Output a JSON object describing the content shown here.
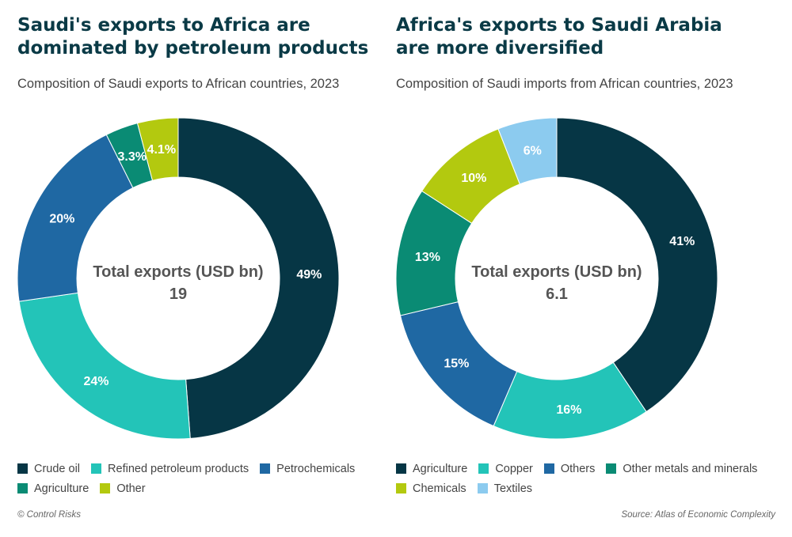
{
  "footer": {
    "credit": "© Control Risks",
    "source": "Source: Atlas of Economic Complexity"
  },
  "chart_data": [
    {
      "type": "pie",
      "title_lines": [
        "Saudi's exports to Africa are",
        "dominated by petroleum products"
      ],
      "subtitle": "Composition of Saudi exports to African countries, 2023",
      "center_label": "Total exports (USD bn)",
      "center_value": "19",
      "slices": [
        {
          "name": "Crude oil",
          "value": 49,
          "label": "49%",
          "color": "#063645"
        },
        {
          "name": "Refined petroleum products",
          "value": 24,
          "label": "24%",
          "color": "#23c4b8"
        },
        {
          "name": "Petrochemicals",
          "value": 20,
          "label": "20%",
          "color": "#1f68a3"
        },
        {
          "name": "Agriculture",
          "value": 3.3,
          "label": "3.3%",
          "color": "#0a8b74"
        },
        {
          "name": "Other",
          "value": 4.1,
          "label": "4.1%",
          "color": "#b3c90f"
        }
      ],
      "legend": [
        "Crude oil",
        "Refined petroleum products",
        "Petrochemicals",
        "Agriculture",
        "Other"
      ]
    },
    {
      "type": "pie",
      "title_lines": [
        "Africa's exports to Saudi Arabia",
        "are more diversified"
      ],
      "subtitle": "Composition of Saudi imports from African countries, 2023",
      "center_label": "Total exports (USD bn)",
      "center_value": "6.1",
      "slices": [
        {
          "name": "Agriculture",
          "value": 41,
          "label": "41%",
          "color": "#063645"
        },
        {
          "name": "Copper",
          "value": 16,
          "label": "16%",
          "color": "#23c4b8"
        },
        {
          "name": "Others",
          "value": 15,
          "label": "15%",
          "color": "#1f68a3"
        },
        {
          "name": "Other metals and minerals",
          "value": 13,
          "label": "13%",
          "color": "#0a8b74"
        },
        {
          "name": "Chemicals",
          "value": 10,
          "label": "10%",
          "color": "#b3c90f"
        },
        {
          "name": "Textiles",
          "value": 6,
          "label": "6%",
          "color": "#8ccbef"
        }
      ],
      "legend": [
        "Agriculture",
        "Copper",
        "Others",
        "Other metals and minerals",
        "Chemicals",
        "Textiles"
      ]
    }
  ]
}
